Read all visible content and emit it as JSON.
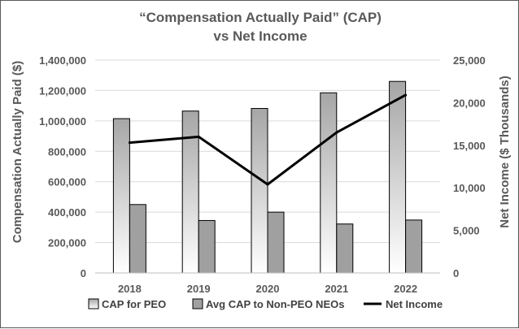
{
  "chart_data": {
    "type": "bar",
    "title": "“Compensation Actually Paid” (CAP)",
    "subtitle": "vs Net Income",
    "categories": [
      "2018",
      "2019",
      "2020",
      "2021",
      "2022"
    ],
    "ylabel": "Compensation Actually Paid ($)",
    "y2label": "Net Income ($ Thousands)",
    "ylim": [
      0,
      1400000
    ],
    "y2lim": [
      0,
      25000
    ],
    "yticks": [
      "0",
      "200,000",
      "400,000",
      "600,000",
      "800,000",
      "1,000,000",
      "1,200,000",
      "1,400,000"
    ],
    "y2ticks": [
      "0",
      "5,000",
      "10,000",
      "15,000",
      "20,000",
      "25,000"
    ],
    "grid": true,
    "legend_position": "bottom",
    "series": [
      {
        "name": "CAP for PEO",
        "type": "bar",
        "axis": "left",
        "values": [
          1015000,
          1065000,
          1082000,
          1185000,
          1260000
        ]
      },
      {
        "name": "Avg CAP to Non-PEO NEOs",
        "type": "bar",
        "axis": "left",
        "values": [
          450000,
          345000,
          400000,
          322000,
          348000
        ]
      },
      {
        "name": "Net Income",
        "type": "line",
        "axis": "right",
        "values": [
          15300,
          16000,
          10400,
          16500,
          20900
        ]
      }
    ],
    "colors": {
      "peo_gradient_top": "#a6a6a6",
      "peo_gradient_bottom": "#ffffff",
      "neo_bar": "#a0a0a0",
      "line": "#000000",
      "grid": "#d9d9d9",
      "text": "#595959"
    }
  }
}
